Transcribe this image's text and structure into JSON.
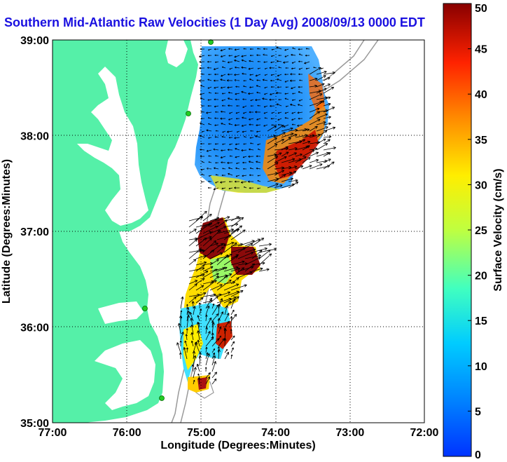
{
  "title": "Southern Mid-Atlantic Raw Velocities (1 Day Avg) 2008/09/13 0000 EDT",
  "map": {
    "xlabel": "Longitude (Degrees:Minutes)",
    "ylabel": "Latitude (Degrees:Minutes)",
    "lon_range": [
      -77,
      -72
    ],
    "lat_range": [
      35,
      39
    ],
    "x_ticks": [
      "77:00",
      "76:00",
      "75:00",
      "74:00",
      "73:00",
      "72:00"
    ],
    "y_ticks": [
      "35:00",
      "36:00",
      "37:00",
      "38:00",
      "39:00"
    ],
    "grid": true,
    "land_color": "#55f0a8",
    "water_color": "#ffffff",
    "station_color": "#22cc22"
  },
  "colorbar": {
    "label": "Surface Velocity (cm/s)",
    "min": 0,
    "max": 50,
    "ticks": [
      "0",
      "5",
      "10",
      "15",
      "20",
      "25",
      "30",
      "35",
      "40",
      "45",
      "50"
    ]
  }
}
